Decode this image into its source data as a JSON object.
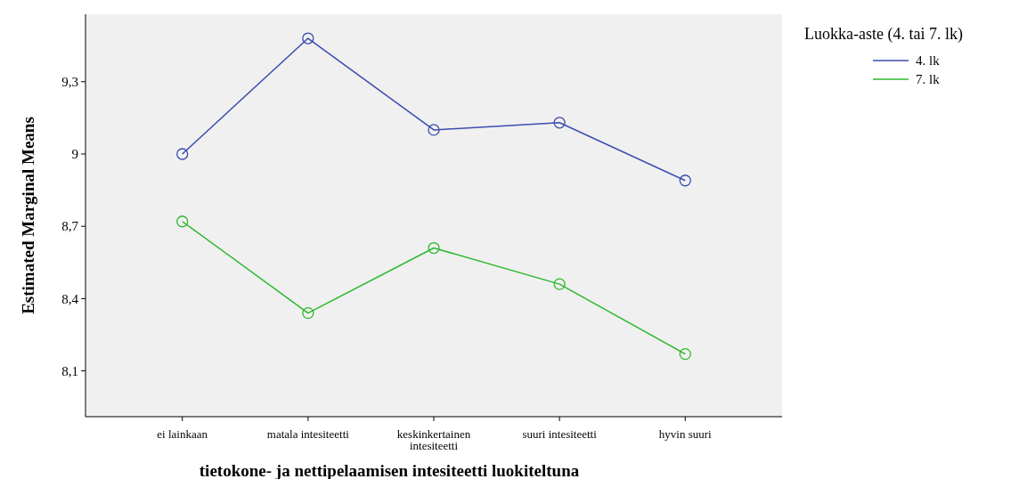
{
  "chart_data": {
    "type": "line",
    "xlabel": "tietokone- ja nettipelaamisen intesiteetti luokiteltuna",
    "ylabel": "Estimated Marginal Means",
    "legend_title": "Luokka-aste (4. tai 7. lk)",
    "categories": [
      "ei lainkaan",
      "matala intesiteetti",
      "keskinkertainen intesiteetti",
      "suuri intesiteetti",
      "hyvin suuri"
    ],
    "series": [
      {
        "name": "4. lk",
        "color": "#3b4cb0",
        "values": [
          9.0,
          9.48,
          9.1,
          9.13,
          8.89
        ]
      },
      {
        "name": "7. lk",
        "color": "#2db82d",
        "values": [
          8.72,
          8.34,
          8.61,
          8.46,
          8.17
        ]
      }
    ],
    "ylim": [
      7.91,
      9.58
    ],
    "yticks": [
      {
        "value": 8.1,
        "label": "8,1"
      },
      {
        "value": 8.4,
        "label": "8,4"
      },
      {
        "value": 8.7,
        "label": "8,7"
      },
      9,
      {
        "value": 9.3,
        "label": "9,3"
      }
    ],
    "legend": "top right",
    "marker": "circle",
    "line_style": "solid"
  }
}
